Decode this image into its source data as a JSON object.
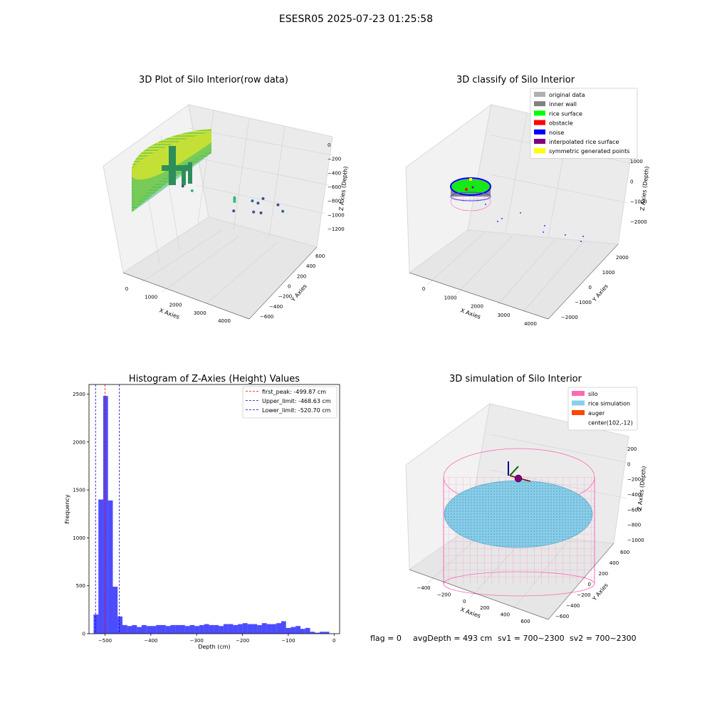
{
  "figure": {
    "title": "ESESR05 2025-07-23 01:25:58",
    "status": {
      "flag": "flag = 0",
      "avg_depth": "avgDepth = 493 cm",
      "sv1": "sv1 = 700~2300",
      "sv2": "sv2 = 700~2300"
    }
  },
  "chart_data": [
    {
      "type": "scatter",
      "title": "3D Plot of Silo Interior(row data)",
      "xlabel": "X Axies",
      "ylabel": "Y Axies",
      "zlabel": "Z Axies (Depth)",
      "x_ticks": [
        "0",
        "1000",
        "2000",
        "3000",
        "4000"
      ],
      "y_ticks": [
        "−600",
        "−400",
        "−200",
        "0",
        "200",
        "400",
        "600"
      ],
      "z_ticks": [
        "−1200",
        "−1000",
        "−800",
        "−600",
        "−400",
        "−200",
        "0"
      ],
      "xlim": [
        -500,
        4500
      ],
      "ylim": [
        -700,
        700
      ],
      "zlim": [
        -1300,
        100
      ],
      "colormap": "viridis",
      "outlier_points": [
        {
          "x": 2000,
          "y": 300,
          "z": -560
        },
        {
          "x": 2000,
          "y": 300,
          "z": -590
        },
        {
          "x": 2000,
          "y": 300,
          "z": -620
        },
        {
          "x": 2900,
          "y": 200,
          "z": -780
        },
        {
          "x": 700,
          "y": 100,
          "z": -700
        },
        {
          "x": 4300,
          "y": 100,
          "z": -900
        },
        {
          "x": 4300,
          "y": 0,
          "z": -1080
        },
        {
          "x": 1100,
          "y": -300,
          "z": -1150
        },
        {
          "x": 3700,
          "y": -100,
          "z": -1100
        },
        {
          "x": 3900,
          "y": -100,
          "z": -1200
        },
        {
          "x": 4200,
          "y": -300,
          "z": -1180
        },
        {
          "x": 4100,
          "y": -400,
          "z": -1260
        },
        {
          "x": 3500,
          "y": -500,
          "z": -1270
        }
      ]
    },
    {
      "type": "scatter",
      "title": "3D classify of Silo Interior",
      "xlabel": "X Axies",
      "ylabel": "Y Axies",
      "zlabel": "Z Axies (Depth)",
      "x_ticks": [
        "0",
        "1000",
        "2000",
        "3000",
        "4000"
      ],
      "y_ticks": [
        "−2000",
        "−1000",
        "0",
        "1000",
        "2000"
      ],
      "z_ticks": [
        "−2000",
        "−1000",
        "0",
        "1000"
      ],
      "legend": [
        {
          "label": "original data",
          "color": "#b0b0b0"
        },
        {
          "label": "inner wall",
          "color": "#808080"
        },
        {
          "label": "rice surface",
          "color": "#00ff00"
        },
        {
          "label": "obstacle",
          "color": "#ff0000"
        },
        {
          "label": "noise",
          "color": "#0000ff"
        },
        {
          "label": "interpolated rice surface",
          "color": "#800080"
        },
        {
          "label": "symmetric generated points",
          "color": "#ffff00"
        }
      ],
      "legend_loc": "upper right"
    },
    {
      "type": "bar",
      "title": "Histogram of Z-Axies (Height) Values",
      "xlabel": "Depth (cm)",
      "ylabel": "Frequency",
      "x_ticks": [
        -500,
        -400,
        -300,
        -200,
        -100,
        0
      ],
      "y_ticks": [
        0,
        500,
        1000,
        1500,
        2000,
        2500
      ],
      "xlim": [
        -535,
        12
      ],
      "ylim": [
        0,
        2600
      ],
      "bin_start": -525,
      "bin_width": 10.5,
      "values": [
        200,
        1400,
        2480,
        1390,
        490,
        180,
        90,
        80,
        90,
        70,
        90,
        80,
        80,
        90,
        90,
        80,
        90,
        90,
        90,
        80,
        90,
        80,
        90,
        100,
        90,
        90,
        80,
        100,
        100,
        90,
        100,
        110,
        100,
        100,
        90,
        110,
        100,
        100,
        110,
        130,
        60,
        70,
        80,
        50,
        60,
        20,
        10,
        20,
        20
      ],
      "bar_color": "#0000ff",
      "lines": [
        {
          "value": -499.87,
          "color": "#ff0000",
          "label": "first_peak: -499.87 cm"
        },
        {
          "value": -468.63,
          "color": "#0000cc",
          "label": "Upper_limit: -468.63 cm"
        },
        {
          "value": -520.7,
          "color": "#0000cc",
          "label": "Lower_limit: -520.70 cm"
        }
      ],
      "legend_loc": "upper right"
    },
    {
      "type": "scatter",
      "title": "3D simulation of Silo Interior",
      "xlabel": "X Axies",
      "ylabel": "Y Axies",
      "zlabel": "Z Axies (Depth)",
      "x_ticks": [
        "−400",
        "−200",
        "0",
        "200",
        "400",
        "600"
      ],
      "y_ticks": [
        "−600",
        "−400",
        "−200",
        "0",
        "200",
        "400",
        "600"
      ],
      "z_ticks": [
        "−1000",
        "−800",
        "−600",
        "−400",
        "−200",
        "0",
        "200"
      ],
      "legend": [
        {
          "label": "silo",
          "color": "#ff69b4"
        },
        {
          "label": "rice simulation",
          "color": "#87ceeb"
        },
        {
          "label": "auger",
          "color": "#ff4500"
        },
        {
          "label": "center(102,-12)",
          "color": ""
        }
      ],
      "legend_loc": "upper right"
    }
  ]
}
